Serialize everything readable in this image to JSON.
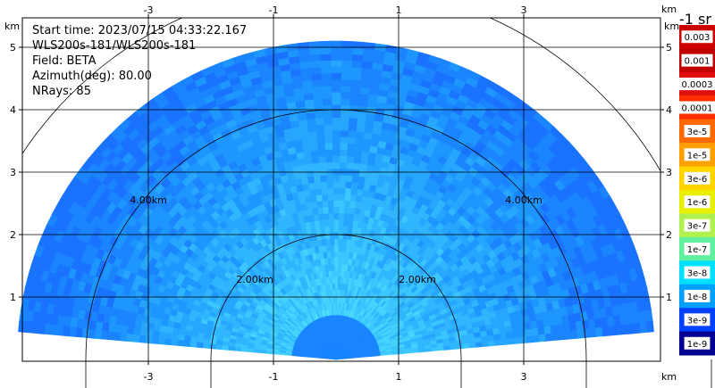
{
  "info": {
    "start_time": "Start time: 2023/07/15 04:33:22.167",
    "instrument": "WLS200s-181/WLS200s-181",
    "field": "Field: BETA",
    "azimuth": "Azimuth(deg): 80.00",
    "nrays": "NRays: 85"
  },
  "colorbar": {
    "title": "-1 sr",
    "labels": [
      "0.003",
      "0.001",
      "0.0003",
      "0.0001",
      "3e-5",
      "1e-5",
      "3e-6",
      "1e-6",
      "3e-7",
      "1e-7",
      "3e-8",
      "1e-8",
      "3e-9",
      "1e-9"
    ],
    "colors": [
      "#cc0000",
      "#c00000",
      "#e01010",
      "#ff3000",
      "#ff6a00",
      "#ffa000",
      "#ffd400",
      "#e8f000",
      "#b0f050",
      "#60f0a0",
      "#00e0ff",
      "#00a0ff",
      "#0040ff",
      "#000090"
    ]
  },
  "chart_data": {
    "type": "heatmap",
    "subtype": "rhi-polar-sector",
    "x_unit_label": "km",
    "y_unit_label": "km",
    "xlim": [
      -5.5,
      4.8
    ],
    "ylim": [
      0,
      5.4
    ],
    "x_ticks": [
      -3,
      -1,
      1,
      3
    ],
    "x_tick_labels": [
      "-3",
      "-1",
      "1",
      "3"
    ],
    "y_ticks": [
      1,
      2,
      3,
      4,
      5
    ],
    "y_tick_labels": [
      "1",
      "2",
      "3",
      "4",
      "5"
    ],
    "grid": true,
    "range_rings_km": [
      2,
      4,
      6
    ],
    "ring_labels": [
      "2.00km",
      "2.00km",
      "4.00km",
      "4.00km"
    ],
    "max_range_km": 5.1,
    "sweep_deg": [
      5,
      175
    ],
    "nrays": 85,
    "field": "BETA",
    "dominant_value_band": "1e-7 to 3e-8"
  }
}
